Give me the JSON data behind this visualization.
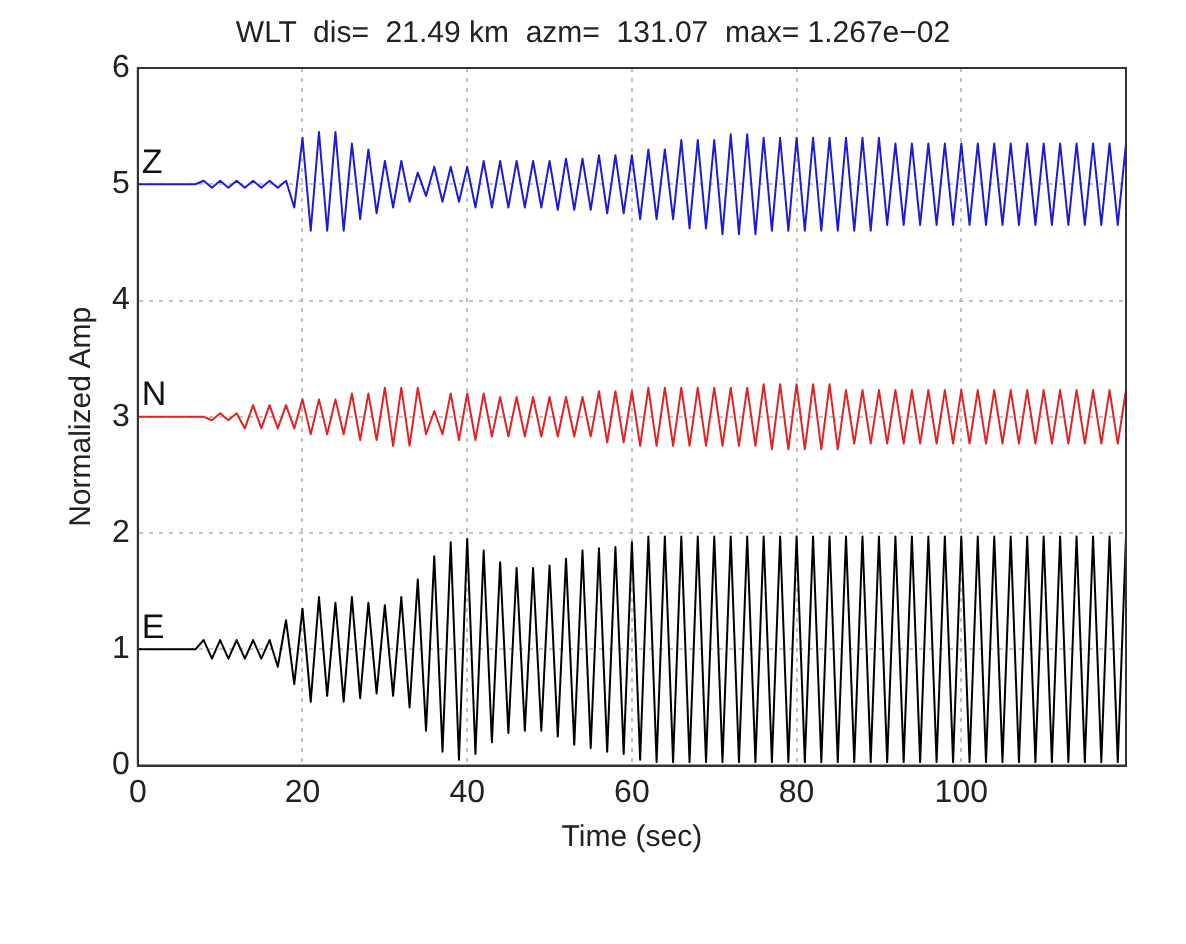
{
  "chart_data": {
    "type": "line",
    "title": "WLT  dis=  21.49 km  azm=  131.07  max= 1.267e−02",
    "xlabel": "Time (sec)",
    "ylabel": "Normalized Amp",
    "x": [
      0,
      1,
      2,
      3,
      4,
      5,
      6,
      7,
      8,
      9,
      10,
      11,
      12,
      13,
      14,
      15,
      16,
      17,
      18,
      19,
      20,
      21,
      22,
      23,
      24,
      25,
      26,
      27,
      28,
      29,
      30,
      31,
      32,
      33,
      34,
      35,
      36,
      37,
      38,
      39,
      40,
      41,
      42,
      43,
      44,
      45,
      46,
      47,
      48,
      49,
      50,
      51,
      52,
      53,
      54,
      55,
      56,
      57,
      58,
      59,
      60,
      61,
      62,
      63,
      64,
      65,
      66,
      67,
      68,
      69,
      70,
      71,
      72,
      73,
      74,
      75,
      76,
      77,
      78,
      79,
      80,
      81,
      82,
      83,
      84,
      85,
      86,
      87,
      88,
      89,
      90,
      91,
      92,
      93,
      94,
      95,
      96,
      97,
      98,
      99,
      100,
      101,
      102,
      103,
      104,
      105,
      106,
      107,
      108,
      109,
      110,
      111,
      112,
      113,
      114,
      115,
      116,
      117,
      118,
      119,
      120
    ],
    "series": [
      {
        "name": "Z",
        "color": "#1c1cd6",
        "values": [
          5,
          5,
          5,
          5,
          5,
          5,
          5,
          5,
          5.03,
          4.97,
          5.03,
          4.97,
          5.03,
          4.97,
          5.03,
          4.97,
          5.03,
          4.97,
          5.03,
          4.8,
          5.4,
          4.6,
          5.45,
          4.6,
          5.45,
          4.6,
          5.35,
          4.7,
          5.3,
          4.75,
          5.2,
          4.8,
          5.2,
          4.85,
          5.1,
          4.9,
          5.15,
          4.85,
          5.15,
          4.85,
          5.15,
          4.8,
          5.2,
          4.8,
          5.2,
          4.8,
          5.2,
          4.8,
          5.2,
          4.8,
          5.2,
          4.78,
          5.22,
          4.78,
          5.22,
          4.78,
          5.25,
          4.75,
          5.25,
          4.75,
          5.25,
          4.7,
          5.3,
          4.7,
          5.3,
          4.7,
          5.38,
          4.62,
          5.38,
          4.62,
          5.38,
          4.57,
          5.43,
          4.57,
          5.43,
          4.57,
          5.4,
          4.6,
          5.4,
          4.6,
          5.4,
          4.6,
          5.4,
          4.6,
          5.4,
          4.6,
          5.4,
          4.6,
          5.4,
          4.6,
          5.4,
          4.65,
          5.35,
          4.65,
          5.35,
          4.65,
          5.35,
          4.65,
          5.35,
          4.65,
          5.35,
          4.65,
          5.35,
          4.65,
          5.35,
          4.65,
          5.35,
          4.65,
          5.35,
          4.65,
          5.35,
          4.65,
          5.35,
          4.65,
          5.35,
          4.65,
          5.35,
          4.65,
          5.35,
          4.65,
          5.35
        ]
      },
      {
        "name": "N",
        "color": "#e02424",
        "values": [
          3,
          3,
          3,
          3,
          3,
          3,
          3,
          3,
          3,
          2.97,
          3.03,
          2.97,
          3.03,
          2.9,
          3.1,
          2.9,
          3.1,
          2.9,
          3.1,
          2.9,
          3.15,
          2.85,
          3.15,
          2.85,
          3.15,
          2.85,
          3.2,
          2.8,
          3.2,
          2.8,
          3.25,
          2.75,
          3.25,
          2.75,
          3.25,
          2.85,
          3.05,
          2.85,
          3.2,
          2.8,
          3.2,
          2.8,
          3.2,
          2.83,
          3.17,
          2.83,
          3.17,
          2.83,
          3.17,
          2.83,
          3.17,
          2.83,
          3.17,
          2.83,
          3.17,
          2.83,
          3.22,
          2.78,
          3.22,
          2.78,
          3.22,
          2.75,
          3.25,
          2.75,
          3.25,
          2.75,
          3.25,
          2.75,
          3.25,
          2.75,
          3.25,
          2.75,
          3.25,
          2.75,
          3.25,
          2.75,
          3.28,
          2.72,
          3.28,
          2.72,
          3.28,
          2.72,
          3.28,
          2.72,
          3.28,
          2.72,
          3.23,
          2.77,
          3.23,
          2.77,
          3.23,
          2.77,
          3.23,
          2.77,
          3.23,
          2.77,
          3.23,
          2.77,
          3.23,
          2.77,
          3.23,
          2.77,
          3.23,
          2.77,
          3.23,
          2.77,
          3.23,
          2.77,
          3.23,
          2.77,
          3.23,
          2.77,
          3.23,
          2.77,
          3.23,
          2.77,
          3.23,
          2.77,
          3.23,
          2.77,
          3.23
        ]
      },
      {
        "name": "E",
        "color": "#000000",
        "values": [
          1,
          1,
          1,
          1,
          1,
          1,
          1,
          1,
          1.08,
          0.92,
          1.08,
          0.92,
          1.08,
          0.92,
          1.08,
          0.92,
          1.08,
          0.85,
          1.25,
          0.7,
          1.35,
          0.55,
          1.45,
          0.6,
          1.4,
          0.55,
          1.45,
          0.58,
          1.4,
          0.62,
          1.38,
          0.6,
          1.45,
          0.5,
          1.6,
          0.3,
          1.8,
          0.12,
          1.92,
          0.05,
          1.95,
          0.1,
          1.85,
          0.2,
          1.75,
          0.28,
          1.7,
          0.3,
          1.7,
          0.3,
          1.72,
          0.25,
          1.78,
          0.18,
          1.85,
          0.15,
          1.87,
          0.12,
          1.88,
          0.1,
          1.92,
          0.05,
          1.97,
          0.03,
          1.97,
          0.03,
          1.97,
          0.03,
          1.97,
          0.03,
          1.97,
          0.03,
          1.97,
          0.03,
          1.97,
          0.03,
          1.97,
          0.03,
          1.97,
          0.03,
          1.97,
          0.03,
          1.97,
          0.03,
          1.97,
          0.03,
          1.97,
          0.03,
          1.97,
          0.03,
          1.97,
          0.03,
          1.97,
          0.03,
          1.97,
          0.03,
          1.97,
          0.03,
          1.97,
          0.03,
          1.97,
          0.03,
          1.97,
          0.03,
          1.97,
          0.03,
          1.97,
          0.03,
          1.97,
          0.03,
          1.97,
          0.03,
          1.97,
          0.03,
          1.97,
          0.03,
          1.97,
          0.03,
          1.97,
          0.03,
          1.97
        ]
      }
    ],
    "xlim": [
      0,
      120
    ],
    "xticks": [
      0,
      20,
      40,
      60,
      80,
      100
    ],
    "ylim": [
      0,
      6
    ],
    "yticks": [
      0,
      1,
      2,
      3,
      4,
      5,
      6
    ],
    "grid": true,
    "legend": false,
    "marker": "none",
    "line_style": "solid"
  }
}
